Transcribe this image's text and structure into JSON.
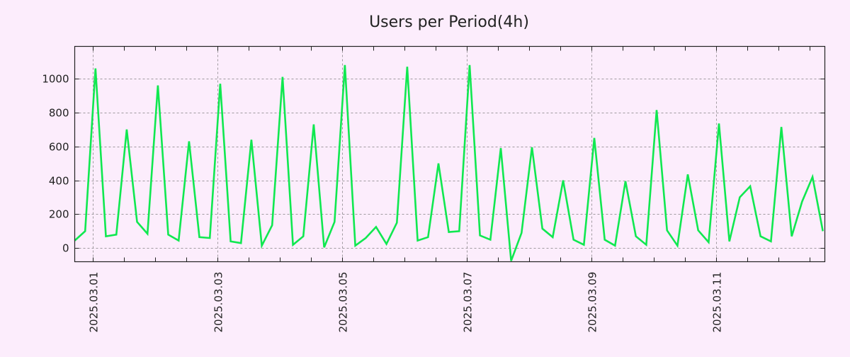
{
  "chart_data": {
    "type": "line",
    "title": "Users per Period(4h)",
    "xlabel": "",
    "ylabel": "",
    "x_start": "2025-02-28T17:00",
    "x_step_hours": 4,
    "xlim": [
      "2025-02-28T17:00",
      "2025-03-12T17:45"
    ],
    "ylim": [
      -80,
      1190
    ],
    "yticks": [
      0,
      200,
      400,
      600,
      800,
      1000
    ],
    "xticks": [
      {
        "date": "2025-03-01T00:00",
        "label": "2025.03.01"
      },
      {
        "date": "2025-03-03T00:00",
        "label": "2025.03.03"
      },
      {
        "date": "2025-03-05T00:00",
        "label": "2025.03.05"
      },
      {
        "date": "2025-03-07T00:00",
        "label": "2025.03.07"
      },
      {
        "date": "2025-03-09T00:00",
        "label": "2025.03.09"
      },
      {
        "date": "2025-03-11T00:00",
        "label": "2025.03.11"
      }
    ],
    "minor_tick_hours": 12,
    "grid": true,
    "legend": "none",
    "series": [
      {
        "name": "Users",
        "color": "#10e850",
        "values": [
          45,
          100,
          1060,
          70,
          80,
          700,
          155,
          85,
          960,
          80,
          45,
          630,
          65,
          60,
          970,
          40,
          30,
          640,
          15,
          135,
          1010,
          20,
          70,
          730,
          5,
          155,
          1080,
          15,
          60,
          125,
          25,
          150,
          1070,
          45,
          65,
          500,
          95,
          100,
          1080,
          75,
          50,
          590,
          -75,
          90,
          595,
          115,
          65,
          400,
          50,
          20,
          650,
          50,
          15,
          395,
          70,
          20,
          815,
          105,
          15,
          435,
          105,
          35,
          735,
          40,
          300,
          365,
          70,
          40,
          715,
          70,
          275,
          420,
          100
        ]
      }
    ]
  },
  "colors": {
    "background": "#fcedfc",
    "grid": "#a09aa0",
    "axis": "#222222"
  }
}
